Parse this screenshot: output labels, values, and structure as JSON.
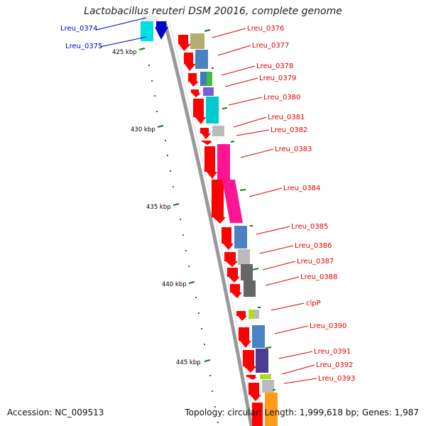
{
  "title": "Lactobacillus reuteri DSM 20016, complete genome",
  "footer": {
    "accession": "Accession: NC_009513",
    "topology": "Topology: circular; Length: 1,999,618 bp; Genes: 1,987"
  },
  "kbp_labels": [
    "425 kbp",
    "430 kbp",
    "435 kbp",
    "440 kbp",
    "445 kbp"
  ],
  "colors": {
    "cds_arrow": "#ff0000",
    "label_red": "#dd0000",
    "label_blue": "#0000cc",
    "tick_green": "#1a7a1a",
    "backbone": "#999999"
  },
  "genes": [
    {
      "name": "Lreu_0374",
      "color": "#0000cc",
      "cog": "#00e0e0"
    },
    {
      "name": "Lreu_0375",
      "color": "#0000cc",
      "cog": "#00e0e0"
    },
    {
      "name": "Lreu_0376",
      "color": "#dd0000",
      "cog": "#b5ad6e"
    },
    {
      "name": "Lreu_0377",
      "color": "#dd0000",
      "cog": "#4a82c4"
    },
    {
      "name": "Lreu_0378",
      "color": "#dd0000",
      "cog": "#3c7fbf"
    },
    {
      "name": "Lreu_0379",
      "color": "#dd0000",
      "cog": "#7a5fd0"
    },
    {
      "name": "Lreu_0380",
      "color": "#dd0000",
      "cog": "#00c8cc"
    },
    {
      "name": "Lreu_0381",
      "color": "#dd0000",
      "cog": "#bbbbbb"
    },
    {
      "name": "Lreu_0382",
      "color": "#dd0000",
      "cog": ""
    },
    {
      "name": "Lreu_0383",
      "color": "#dd0000",
      "cog": "#ff1493"
    },
    {
      "name": "Lreu_0384",
      "color": "#dd0000",
      "cog": "#ff1493"
    },
    {
      "name": "Lreu_0385",
      "color": "#dd0000",
      "cog": "#4a82c4"
    },
    {
      "name": "Lreu_0386",
      "color": "#dd0000",
      "cog": "#bbbbbb"
    },
    {
      "name": "Lreu_0387",
      "color": "#dd0000",
      "cog": "#666666"
    },
    {
      "name": "Lreu_0388",
      "color": "#dd0000",
      "cog": "#666666"
    },
    {
      "name": "clpP",
      "color": "#dd0000",
      "cog": "#aadd22"
    },
    {
      "name": "Lreu_0390",
      "color": "#dd0000",
      "cog": "#4a82c4"
    },
    {
      "name": "Lreu_0391",
      "color": "#dd0000",
      "cog": "#4b3d8f"
    },
    {
      "name": "Lreu_0392",
      "color": "#dd0000",
      "cog": "#aadd22"
    },
    {
      "name": "Lreu_0393",
      "color": "#dd0000",
      "cog": "#bbbbbb"
    }
  ]
}
